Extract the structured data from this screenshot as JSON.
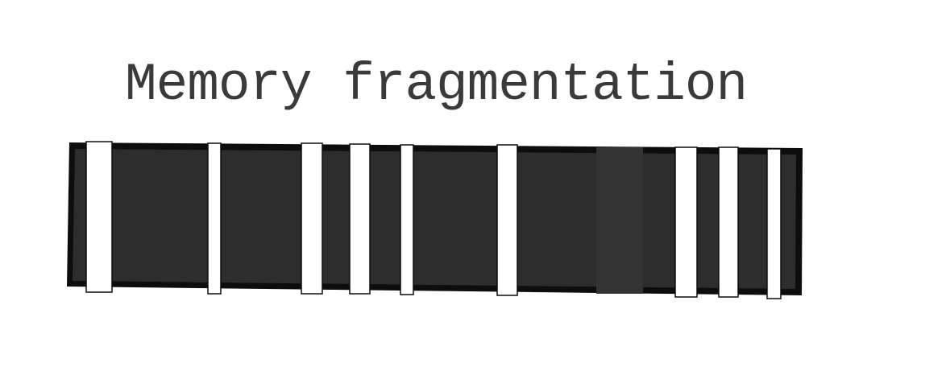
{
  "title": "Memory fragmentation",
  "colors": {
    "background": "#ffffff",
    "outline": "#0d0d0d",
    "memory_used": "#2d2d2d",
    "memory_used_alt": "#333333",
    "free_gap": "#ffffff",
    "text": "#3a3a3a"
  }
}
